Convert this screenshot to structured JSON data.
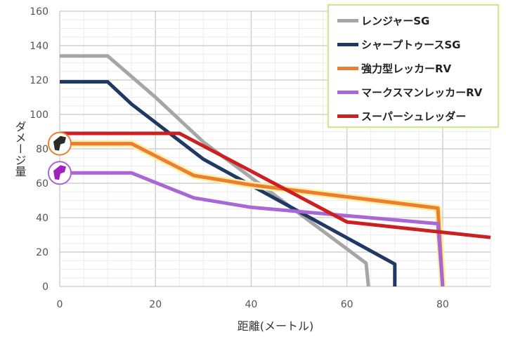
{
  "chart_data": {
    "type": "line",
    "title": "",
    "xlabel": "距離(メートル)",
    "ylabel": "ダメージ量",
    "xlim": [
      0,
      90
    ],
    "ylim": [
      0,
      160
    ],
    "x_ticks": [
      0,
      20,
      40,
      60,
      80
    ],
    "y_ticks": [
      0,
      20,
      40,
      60,
      80,
      100,
      120,
      140,
      160
    ],
    "grid": true,
    "legend_position": "top-right",
    "series": [
      {
        "name": "レンジャーSG",
        "color": "#a6a6a6",
        "x": [
          0,
          10,
          20,
          30,
          64,
          64.5
        ],
        "y": [
          134,
          134,
          110,
          84,
          13.5,
          0
        ]
      },
      {
        "name": "シャープトゥースSG",
        "color": "#1f3864",
        "x": [
          0,
          10,
          15,
          30,
          70,
          70
        ],
        "y": [
          119,
          119,
          106,
          74,
          13,
          0
        ]
      },
      {
        "name": "強力型レッカーRV",
        "color": "#ed7d31",
        "x": [
          0,
          15,
          28,
          40,
          79,
          80
        ],
        "y": [
          83,
          83,
          64.5,
          59,
          45.5,
          0
        ]
      },
      {
        "name": "マークスマンレッカーRV",
        "color": "#a866d6",
        "x": [
          0,
          15,
          28,
          40,
          79,
          80
        ],
        "y": [
          66,
          66,
          51.5,
          46,
          36.5,
          0
        ]
      },
      {
        "name": "スーパーシュレッダー",
        "color": "#cc1f1f",
        "x": [
          0,
          25,
          40,
          60,
          90
        ],
        "y": [
          89,
          89,
          67,
          37.5,
          28.5
        ]
      }
    ],
    "markers": [
      {
        "series": "強力型レッカーRV",
        "icon": "black-weapon-icon",
        "x": 0,
        "y": 83
      },
      {
        "series": "マークスマンレッカーRV",
        "icon": "purple-weapon-icon",
        "x": 0,
        "y": 66
      }
    ]
  }
}
